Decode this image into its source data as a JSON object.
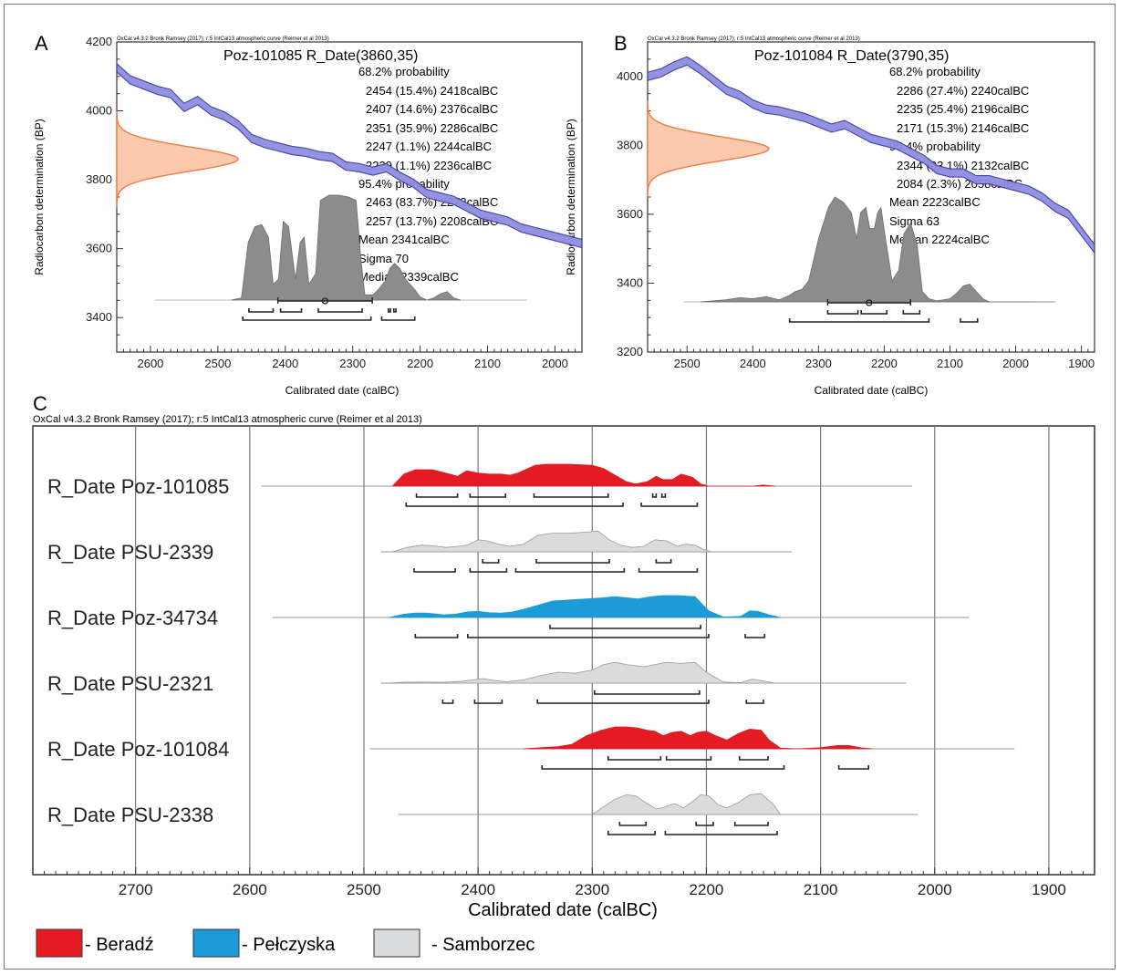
{
  "panels": {
    "A": {
      "letter": "A",
      "credit": "OxCal v4.3.2 Bronk Ramsey (2017); r:5 IntCal13 atmospheric curve (Reimer et al 2013)",
      "title": "Poz-101085 R_Date(3860,35)",
      "stats": [
        "68.2% probability",
        "2454 (15.4%) 2418calBC",
        "2407 (14.6%) 2376calBC",
        "2351 (35.9%) 2286calBC",
        "2247 (1.1%) 2244calBC",
        "2239 (1.1%) 2236calBC",
        "95.4% probability",
        "2463 (83.7%) 2273calBC",
        "2257 (13.7%) 2208calBC",
        "Mean 2341calBC",
        "Sigma 70",
        "Median 2339calBC"
      ],
      "ylabel": "Radiocarbon determination (BP)",
      "xlabel": "Calibrated date (calBC)"
    },
    "B": {
      "letter": "B",
      "credit": "OxCal v4.3.2 Bronk Ramsey (2017); r:5 IntCal13 atmospheric curve (Reimer et al 2013)",
      "title": "Poz-101084 R_Date(3790,35)",
      "stats": [
        "68.2% probability",
        "2286 (27.4%) 2240calBC",
        "2235 (25.4%) 2196calBC",
        "2171 (15.3%) 2146calBC",
        "95.4% probability",
        "2344 (93.1%) 2132calBC",
        "2084 (2.3%) 2058calBC",
        "Mean 2223calBC",
        "Sigma 63",
        "Median 2224calBC"
      ],
      "ylabel": "Radiocarbon determination (BP)",
      "xlabel": "Calibrated date (calBC)"
    },
    "C": {
      "letter": "C",
      "credit": "OxCal v4.3.2 Bronk Ramsey (2017); r:5 IntCal13 atmospheric curve (Reimer et al 2013)",
      "xlabel": "Calibrated date (calBC)"
    }
  },
  "legend": [
    {
      "label": "- Beradź",
      "color": "#e41b23"
    },
    {
      "label": "- Pełczyska",
      "color": "#1b9bd7"
    },
    {
      "label": "- Samborzec",
      "color": "#d9dbdc"
    }
  ],
  "colors": {
    "curve_band": "#8f8ee0",
    "curve_line": "#3a36a6",
    "radiocarbon_fill": "#fbc9ad",
    "radiocarbon_line": "#ef7b45",
    "posterior_grey": "#8c8c8c"
  },
  "chart_data": [
    {
      "type": "area",
      "panel": "A",
      "title": "Poz-101085 R_Date(3860,35)",
      "xlabel": "Calibrated date (calBC)",
      "ylabel": "Radiocarbon determination (BP)",
      "xlim": [
        2650,
        1960
      ],
      "ylim": [
        3300,
        4200
      ],
      "x_reversed": true,
      "xticks": [
        2600,
        2500,
        2400,
        2300,
        2200,
        2100,
        2000
      ],
      "yticks": [
        3400,
        3600,
        3800,
        4000,
        4200
      ],
      "radiocarbon_date": {
        "bp": 3860,
        "error": 35
      },
      "calibration_curve": {
        "x": [
          2650,
          2630,
          2610,
          2590,
          2570,
          2550,
          2530,
          2510,
          2490,
          2470,
          2450,
          2430,
          2410,
          2390,
          2370,
          2350,
          2330,
          2310,
          2290,
          2270,
          2250,
          2230,
          2210,
          2190,
          2170,
          2150,
          2130,
          2110,
          2090,
          2070,
          2050,
          2030,
          2010,
          1990,
          1970,
          1960
        ],
        "y": [
          4125,
          4090,
          4075,
          4060,
          4050,
          4010,
          4030,
          4000,
          3985,
          3960,
          3920,
          3905,
          3895,
          3885,
          3880,
          3870,
          3865,
          3840,
          3835,
          3825,
          3835,
          3810,
          3790,
          3760,
          3750,
          3740,
          3720,
          3700,
          3690,
          3680,
          3660,
          3650,
          3640,
          3630,
          3620,
          3615
        ]
      },
      "posterior": {
        "x": [
          2480,
          2465,
          2455,
          2445,
          2435,
          2425,
          2418,
          2410,
          2403,
          2395,
          2385,
          2378,
          2372,
          2365,
          2355,
          2348,
          2335,
          2320,
          2305,
          2295,
          2288,
          2282,
          2270,
          2262,
          2252,
          2245,
          2238,
          2230,
          2222,
          2215,
          2208,
          2200,
          2190,
          2180,
          2170,
          2160,
          2150,
          2140
        ],
        "density": [
          0.0,
          0.02,
          0.55,
          0.7,
          0.72,
          0.6,
          0.15,
          0.2,
          0.75,
          0.7,
          0.2,
          0.55,
          0.6,
          0.15,
          0.25,
          0.95,
          1.0,
          1.0,
          0.98,
          0.95,
          0.4,
          0.05,
          0.05,
          0.1,
          0.18,
          0.3,
          0.35,
          0.3,
          0.2,
          0.15,
          0.1,
          0.03,
          0.0,
          0.02,
          0.06,
          0.08,
          0.02,
          0.0
        ]
      },
      "ranges_68": [
        [
          2454,
          2418
        ],
        [
          2407,
          2376
        ],
        [
          2351,
          2286
        ],
        [
          2247,
          2244
        ],
        [
          2239,
          2236
        ]
      ],
      "ranges_95": [
        [
          2463,
          2273
        ],
        [
          2257,
          2208
        ]
      ],
      "mean": 2341,
      "sigma": 70,
      "median": 2339
    },
    {
      "type": "area",
      "panel": "B",
      "title": "Poz-101084 R_Date(3790,35)",
      "xlabel": "Calibrated date (calBC)",
      "ylabel": "Radiocarbon determination (BP)",
      "xlim": [
        2560,
        1880
      ],
      "ylim": [
        3200,
        4100
      ],
      "x_reversed": true,
      "xticks": [
        2500,
        2400,
        2300,
        2200,
        2100,
        2000,
        1900
      ],
      "yticks": [
        3200,
        3400,
        3600,
        3800,
        4000
      ],
      "radiocarbon_date": {
        "bp": 3790,
        "error": 35
      },
      "calibration_curve": {
        "x": [
          2560,
          2540,
          2520,
          2500,
          2480,
          2460,
          2440,
          2420,
          2400,
          2380,
          2360,
          2340,
          2320,
          2300,
          2280,
          2260,
          2240,
          2220,
          2200,
          2180,
          2160,
          2140,
          2120,
          2100,
          2080,
          2060,
          2040,
          2020,
          2000,
          1980,
          1960,
          1940,
          1920,
          1900,
          1880
        ],
        "y": [
          4000,
          4010,
          4030,
          4045,
          4020,
          3990,
          3960,
          3945,
          3920,
          3905,
          3900,
          3890,
          3880,
          3865,
          3850,
          3860,
          3840,
          3820,
          3810,
          3800,
          3780,
          3760,
          3730,
          3720,
          3720,
          3700,
          3700,
          3690,
          3680,
          3670,
          3650,
          3620,
          3600,
          3550,
          3500
        ]
      },
      "posterior": {
        "x": [
          2480,
          2440,
          2420,
          2400,
          2380,
          2360,
          2345,
          2335,
          2325,
          2315,
          2300,
          2285,
          2275,
          2262,
          2250,
          2242,
          2236,
          2228,
          2222,
          2215,
          2210,
          2205,
          2198,
          2188,
          2178,
          2170,
          2160,
          2150,
          2142,
          2132,
          2120,
          2100,
          2090,
          2080,
          2070,
          2060,
          2050,
          2040,
          1940
        ],
        "density": [
          0.0,
          0.02,
          0.04,
          0.03,
          0.05,
          0.02,
          0.06,
          0.1,
          0.12,
          0.2,
          0.6,
          0.9,
          1.0,
          0.95,
          0.85,
          0.6,
          0.85,
          0.9,
          0.7,
          0.7,
          0.85,
          0.9,
          0.6,
          0.2,
          0.3,
          0.65,
          0.75,
          0.55,
          0.1,
          0.03,
          0.01,
          0.03,
          0.08,
          0.15,
          0.17,
          0.1,
          0.03,
          0.0,
          0.0
        ]
      },
      "ranges_68": [
        [
          2286,
          2240
        ],
        [
          2235,
          2196
        ],
        [
          2171,
          2146
        ]
      ],
      "ranges_95": [
        [
          2344,
          2132
        ],
        [
          2084,
          2058
        ]
      ],
      "mean": 2223,
      "sigma": 63,
      "median": 2224
    },
    {
      "type": "area",
      "panel": "C",
      "xlabel": "Calibrated date (calBC)",
      "xlim": [
        2790,
        1860
      ],
      "x_reversed": true,
      "xticks": [
        2700,
        2600,
        2500,
        2400,
        2300,
        2200,
        2100,
        2000,
        1900
      ],
      "series": [
        {
          "name": "R_Date Poz-101085",
          "group": "Beradź",
          "span": [
            2590,
            2020
          ],
          "x": [
            2475,
            2465,
            2455,
            2440,
            2425,
            2418,
            2410,
            2400,
            2390,
            2380,
            2372,
            2365,
            2350,
            2340,
            2320,
            2300,
            2290,
            2280,
            2270,
            2262,
            2252,
            2244,
            2238,
            2230,
            2222,
            2212,
            2205,
            2198,
            2160,
            2150,
            2140
          ],
          "density": [
            0.0,
            0.55,
            0.75,
            0.75,
            0.55,
            0.45,
            0.7,
            0.6,
            0.55,
            0.55,
            0.5,
            0.6,
            0.95,
            1.0,
            1.0,
            0.95,
            0.8,
            0.5,
            0.2,
            0.1,
            0.2,
            0.45,
            0.3,
            0.3,
            0.55,
            0.4,
            0.1,
            0.0,
            0.0,
            0.05,
            0.0
          ],
          "ranges_68": [
            [
              2454,
              2418
            ],
            [
              2407,
              2376
            ],
            [
              2351,
              2286
            ],
            [
              2247,
              2244
            ],
            [
              2239,
              2236
            ]
          ],
          "ranges_95": [
            [
              2463,
              2273
            ],
            [
              2257,
              2208
            ]
          ]
        },
        {
          "name": "R_Date PSU-2339",
          "group": "Samborzec",
          "span": [
            2485,
            2125
          ],
          "x": [
            2475,
            2462,
            2450,
            2440,
            2428,
            2418,
            2410,
            2400,
            2392,
            2382,
            2372,
            2360,
            2348,
            2335,
            2320,
            2305,
            2295,
            2285,
            2275,
            2265,
            2255,
            2245,
            2235,
            2225,
            2218,
            2210,
            2202,
            2195
          ],
          "density": [
            0.0,
            0.2,
            0.3,
            0.28,
            0.2,
            0.25,
            0.3,
            0.55,
            0.5,
            0.35,
            0.25,
            0.35,
            0.75,
            0.85,
            0.85,
            0.9,
            0.95,
            0.55,
            0.3,
            0.2,
            0.25,
            0.55,
            0.5,
            0.25,
            0.35,
            0.3,
            0.1,
            0.0
          ],
          "ranges_68": [
            [
              2396,
              2382
            ],
            [
              2349,
              2285
            ],
            [
              2244,
              2231
            ]
          ],
          "ranges_95": [
            [
              2456,
              2420
            ],
            [
              2407,
              2375
            ],
            [
              2367,
              2272
            ],
            [
              2259,
              2208
            ]
          ]
        },
        {
          "name": "R_Date Poz-34734",
          "group": "Pełczyska",
          "span": [
            2580,
            1970
          ],
          "x": [
            2478,
            2465,
            2455,
            2445,
            2430,
            2420,
            2410,
            2400,
            2390,
            2380,
            2370,
            2358,
            2348,
            2335,
            2320,
            2305,
            2290,
            2280,
            2270,
            2260,
            2248,
            2238,
            2225,
            2210,
            2198,
            2185,
            2170,
            2162,
            2155,
            2145,
            2135
          ],
          "density": [
            0.0,
            0.15,
            0.2,
            0.2,
            0.12,
            0.15,
            0.25,
            0.28,
            0.22,
            0.2,
            0.25,
            0.4,
            0.55,
            0.75,
            0.8,
            0.85,
            0.9,
            0.95,
            0.9,
            0.85,
            0.95,
            1.0,
            1.0,
            0.95,
            0.3,
            0.02,
            0.05,
            0.3,
            0.28,
            0.12,
            0.0
          ],
          "ranges_68": [
            [
              2337,
              2205
            ]
          ],
          "ranges_95": [
            [
              2455,
              2418
            ],
            [
              2409,
              2198
            ],
            [
              2166,
              2149
            ]
          ]
        },
        {
          "name": "R_Date PSU-2321",
          "group": "Samborzec",
          "span": [
            2485,
            2025
          ],
          "x": [
            2480,
            2465,
            2450,
            2430,
            2415,
            2405,
            2395,
            2385,
            2375,
            2360,
            2345,
            2330,
            2315,
            2300,
            2290,
            2280,
            2270,
            2255,
            2245,
            2235,
            2222,
            2210,
            2200,
            2185,
            2170,
            2160,
            2150,
            2140
          ],
          "density": [
            0.0,
            0.04,
            0.05,
            0.04,
            0.08,
            0.15,
            0.2,
            0.12,
            0.06,
            0.15,
            0.35,
            0.5,
            0.45,
            0.6,
            0.85,
            0.95,
            0.85,
            0.75,
            0.85,
            0.95,
            0.9,
            0.95,
            0.5,
            0.05,
            0.02,
            0.18,
            0.1,
            0.0
          ],
          "ranges_68": [
            [
              2298,
              2206
            ]
          ],
          "ranges_95": [
            [
              2431,
              2422
            ],
            [
              2403,
              2379
            ],
            [
              2348,
              2198
            ],
            [
              2165,
              2150
            ]
          ]
        },
        {
          "name": "R_Date Poz-101084",
          "group": "Beradź",
          "span": [
            2495,
            1930
          ],
          "x": [
            2360,
            2345,
            2330,
            2318,
            2305,
            2292,
            2280,
            2270,
            2260,
            2252,
            2245,
            2238,
            2230,
            2222,
            2214,
            2208,
            2200,
            2192,
            2182,
            2172,
            2162,
            2152,
            2145,
            2135,
            2120,
            2100,
            2085,
            2075,
            2065,
            2055
          ],
          "density": [
            0.0,
            0.05,
            0.1,
            0.2,
            0.6,
            0.85,
            1.0,
            1.0,
            0.95,
            0.85,
            0.8,
            0.6,
            0.75,
            0.8,
            0.6,
            0.75,
            0.8,
            0.6,
            0.4,
            0.7,
            0.9,
            0.85,
            0.4,
            0.03,
            0.0,
            0.05,
            0.15,
            0.15,
            0.05,
            0.0
          ],
          "ranges_68": [
            [
              2286,
              2240
            ],
            [
              2235,
              2196
            ],
            [
              2171,
              2146
            ]
          ],
          "ranges_95": [
            [
              2344,
              2132
            ],
            [
              2084,
              2058
            ]
          ]
        },
        {
          "name": "R_Date PSU-2338",
          "group": "Samborzec",
          "span": [
            2470,
            2015
          ],
          "x": [
            2300,
            2290,
            2280,
            2270,
            2262,
            2252,
            2244,
            2236,
            2228,
            2220,
            2212,
            2205,
            2198,
            2190,
            2182,
            2172,
            2162,
            2152,
            2142,
            2135
          ],
          "density": [
            0.0,
            0.35,
            0.7,
            0.9,
            0.85,
            0.5,
            0.25,
            0.35,
            0.5,
            0.3,
            0.6,
            0.9,
            0.85,
            0.45,
            0.3,
            0.55,
            0.9,
            0.95,
            0.5,
            0.0
          ],
          "ranges_68": [
            [
              2276,
              2253
            ],
            [
              2209,
              2194
            ],
            [
              2175,
              2146
            ]
          ],
          "ranges_95": [
            [
              2286,
              2245
            ],
            [
              2236,
              2138
            ]
          ]
        }
      ]
    }
  ]
}
